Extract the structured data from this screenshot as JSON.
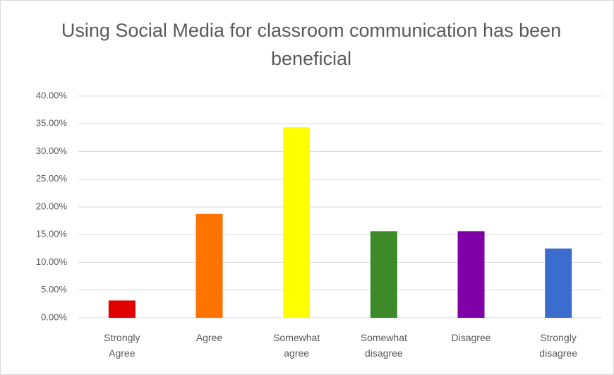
{
  "chart_data": {
    "type": "bar",
    "title": "Using Social Media for classroom communication has been beneficial",
    "categories": [
      "Strongly Agree",
      "Agree",
      "Somewhat agree",
      "Somewhat disagree",
      "Disagree",
      "Strongly disagree"
    ],
    "values": [
      3.125,
      18.75,
      34.375,
      15.625,
      15.625,
      12.5
    ],
    "colors": [
      "#e00000",
      "#ff7400",
      "#ffff00",
      "#3d8a28",
      "#7f00a6",
      "#3b6dce"
    ],
    "ylim": [
      0,
      40
    ],
    "yticks": [
      {
        "value": 0,
        "label": "0.00%"
      },
      {
        "value": 5,
        "label": "5.00%"
      },
      {
        "value": 10,
        "label": "10.00%"
      },
      {
        "value": 15,
        "label": "15.00%"
      },
      {
        "value": 20,
        "label": "20.00%"
      },
      {
        "value": 25,
        "label": "25.00%"
      },
      {
        "value": 30,
        "label": "30.00%"
      },
      {
        "value": 35,
        "label": "35.00%"
      },
      {
        "value": 40,
        "label": "40.00%"
      }
    ],
    "grid": true
  }
}
